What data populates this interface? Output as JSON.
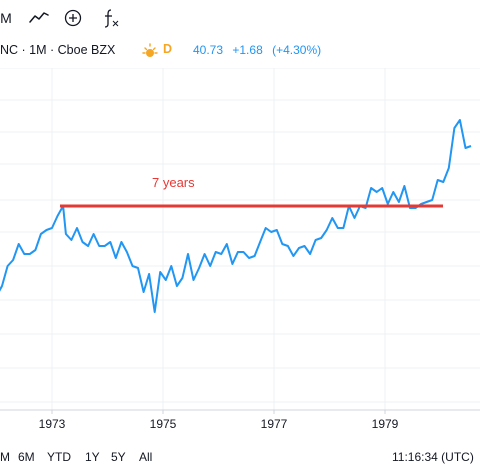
{
  "toolbar": {
    "partial_label": "M",
    "icons": [
      "line-chart-icon",
      "add-compare-icon",
      "indicators-fx-icon"
    ]
  },
  "legend": {
    "symbol": "NC · 1M · Cboe BZX",
    "market_status": "D",
    "price": "40.73",
    "change": "+1.68",
    "change_pct": "(+4.30%)",
    "accent_color": "#2196f3"
  },
  "chart_data": {
    "type": "line",
    "x_ticks": [
      "1973",
      "1975",
      "1977",
      "1979"
    ],
    "annotation": {
      "text": "7 years",
      "color": "#e53935"
    },
    "series_color": "#2196f3",
    "grid": true,
    "series": [
      {
        "values": [
          [
            1971.9,
            230
          ],
          [
            1972.0,
            228
          ],
          [
            1972.1,
            218
          ],
          [
            1972.2,
            198
          ],
          [
            1972.3,
            192
          ],
          [
            1972.4,
            176
          ],
          [
            1972.5,
            186
          ],
          [
            1972.6,
            186
          ],
          [
            1972.7,
            182
          ],
          [
            1972.8,
            166
          ],
          [
            1972.9,
            162
          ],
          [
            1973.0,
            160
          ],
          [
            1973.1,
            148
          ],
          [
            1973.2,
            138
          ],
          [
            1973.25,
            166
          ],
          [
            1973.35,
            172
          ],
          [
            1973.45,
            160
          ],
          [
            1973.55,
            174
          ],
          [
            1973.65,
            178
          ],
          [
            1973.75,
            166
          ],
          [
            1973.85,
            178
          ],
          [
            1973.95,
            178
          ],
          [
            1974.05,
            174
          ],
          [
            1974.15,
            190
          ],
          [
            1974.25,
            174
          ],
          [
            1974.35,
            184
          ],
          [
            1974.45,
            198
          ],
          [
            1974.55,
            200
          ],
          [
            1974.65,
            224
          ],
          [
            1974.75,
            206
          ],
          [
            1974.85,
            244
          ],
          [
            1974.95,
            204
          ],
          [
            1975.05,
            212
          ],
          [
            1975.15,
            198
          ],
          [
            1975.25,
            218
          ],
          [
            1975.35,
            210
          ],
          [
            1975.45,
            186
          ],
          [
            1975.55,
            212
          ],
          [
            1975.65,
            200
          ],
          [
            1975.75,
            186
          ],
          [
            1975.85,
            198
          ],
          [
            1975.95,
            184
          ],
          [
            1976.05,
            186
          ],
          [
            1976.15,
            176
          ],
          [
            1976.25,
            196
          ],
          [
            1976.35,
            184
          ],
          [
            1976.45,
            184
          ],
          [
            1976.55,
            190
          ],
          [
            1976.65,
            188
          ],
          [
            1976.75,
            174
          ],
          [
            1976.85,
            160
          ],
          [
            1976.95,
            164
          ],
          [
            1977.05,
            162
          ],
          [
            1977.15,
            176
          ],
          [
            1977.25,
            178
          ],
          [
            1977.35,
            188
          ],
          [
            1977.45,
            180
          ],
          [
            1977.55,
            178
          ],
          [
            1977.65,
            186
          ],
          [
            1977.75,
            172
          ],
          [
            1977.85,
            170
          ],
          [
            1977.95,
            162
          ],
          [
            1978.05,
            150
          ],
          [
            1978.15,
            160
          ],
          [
            1978.25,
            160
          ],
          [
            1978.35,
            138
          ],
          [
            1978.45,
            150
          ],
          [
            1978.55,
            138
          ],
          [
            1978.65,
            140
          ],
          [
            1978.75,
            120
          ],
          [
            1978.85,
            124
          ],
          [
            1978.95,
            120
          ],
          [
            1979.05,
            136
          ],
          [
            1979.15,
            124
          ],
          [
            1979.25,
            134
          ],
          [
            1979.35,
            118
          ],
          [
            1979.45,
            140
          ],
          [
            1979.55,
            140
          ],
          [
            1979.65,
            136
          ],
          [
            1979.75,
            134
          ],
          [
            1979.85,
            132
          ],
          [
            1979.95,
            112
          ],
          [
            1980.05,
            114
          ],
          [
            1980.15,
            100
          ],
          [
            1980.25,
            60
          ],
          [
            1980.35,
            52
          ],
          [
            1980.45,
            80
          ],
          [
            1980.55,
            78
          ]
        ]
      }
    ]
  },
  "range_buttons": [
    "M",
    "6M",
    "YTD",
    "1Y",
    "5Y",
    "All"
  ],
  "clock": "11:16:34 (UTC)"
}
